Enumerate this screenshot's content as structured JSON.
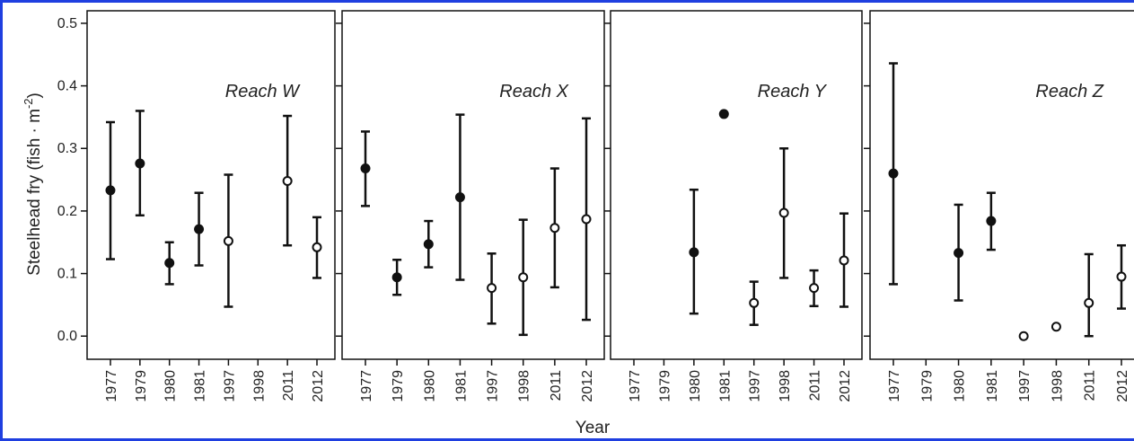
{
  "xlabel": "Year",
  "ylabel": {
    "text": "Steelhead fry (fish · m",
    "sup": "-2",
    "end": ")"
  },
  "chart_data": [
    {
      "type": "errorbar",
      "title": "Reach W",
      "categories": [
        "1977",
        "1979",
        "1980",
        "1981",
        "1997",
        "1998",
        "2011",
        "2012"
      ],
      "values": [
        0.233,
        0.276,
        0.117,
        0.171,
        0.152,
        null,
        0.248,
        0.142
      ],
      "lower": [
        0.123,
        0.193,
        0.083,
        0.113,
        0.047,
        null,
        0.145,
        0.093
      ],
      "upper": [
        0.342,
        0.36,
        0.15,
        0.229,
        0.258,
        null,
        0.352,
        0.19
      ],
      "marker": [
        "filled",
        "filled",
        "filled",
        "filled",
        "open",
        null,
        "open",
        "open"
      ],
      "ylim": [
        -0.037,
        0.52
      ],
      "yticks": [
        {
          "value": 0,
          "label": "0.0"
        },
        0.1,
        0.2,
        0.3,
        0.4,
        0.5
      ],
      "ytick_labels": true,
      "color": "#111111"
    },
    {
      "type": "errorbar",
      "title": "Reach X",
      "categories": [
        "1977",
        "1979",
        "1980",
        "1981",
        "1997",
        "1998",
        "2011",
        "2012"
      ],
      "values": [
        0.268,
        0.094,
        0.147,
        0.222,
        0.077,
        0.094,
        0.173,
        0.187
      ],
      "lower": [
        0.208,
        0.066,
        0.11,
        0.09,
        0.02,
        0.002,
        0.078,
        0.026
      ],
      "upper": [
        0.327,
        0.122,
        0.184,
        0.354,
        0.132,
        0.186,
        0.268,
        0.348
      ],
      "marker": [
        "filled",
        "filled",
        "filled",
        "filled",
        "open",
        "open",
        "open",
        "open"
      ],
      "ylim": [
        -0.037,
        0.52
      ],
      "yticks": [
        0,
        0.1,
        0.2,
        0.3,
        0.4,
        0.5
      ],
      "ytick_labels": false,
      "color": "#111111"
    },
    {
      "type": "errorbar",
      "title": "Reach Y",
      "categories": [
        "1977",
        "1979",
        "1980",
        "1981",
        "1997",
        "1998",
        "2011",
        "2012"
      ],
      "values": [
        null,
        null,
        0.134,
        0.355,
        0.053,
        0.197,
        0.077,
        0.121
      ],
      "lower": [
        null,
        null,
        0.036,
        null,
        0.018,
        0.093,
        0.048,
        0.047
      ],
      "upper": [
        null,
        null,
        0.234,
        null,
        0.087,
        0.3,
        0.105,
        0.196
      ],
      "marker": [
        null,
        null,
        "filled",
        "filled",
        "open",
        "open",
        "open",
        "open"
      ],
      "ylim": [
        -0.037,
        0.52
      ],
      "yticks": [
        0,
        0.1,
        0.2,
        0.3,
        0.4,
        0.5
      ],
      "ytick_labels": false,
      "color": "#111111"
    },
    {
      "type": "errorbar",
      "title": "Reach Z",
      "categories": [
        "1977",
        "1979",
        "1980",
        "1981",
        "1997",
        "1998",
        "2011",
        "2012"
      ],
      "values": [
        0.26,
        null,
        0.133,
        0.184,
        0,
        0.015,
        0.053,
        0.095
      ],
      "lower": [
        0.083,
        null,
        0.057,
        0.138,
        null,
        null,
        0,
        0.044
      ],
      "upper": [
        0.436,
        null,
        0.21,
        0.229,
        null,
        null,
        0.131,
        0.145
      ],
      "marker": [
        "filled",
        null,
        "filled",
        "filled",
        "open",
        "open",
        "open",
        "open"
      ],
      "ylim": [
        -0.037,
        0.52
      ],
      "yticks": [
        0,
        0.1,
        0.2,
        0.3,
        0.4,
        0.5
      ],
      "ytick_labels": false,
      "color": "#111111"
    }
  ]
}
